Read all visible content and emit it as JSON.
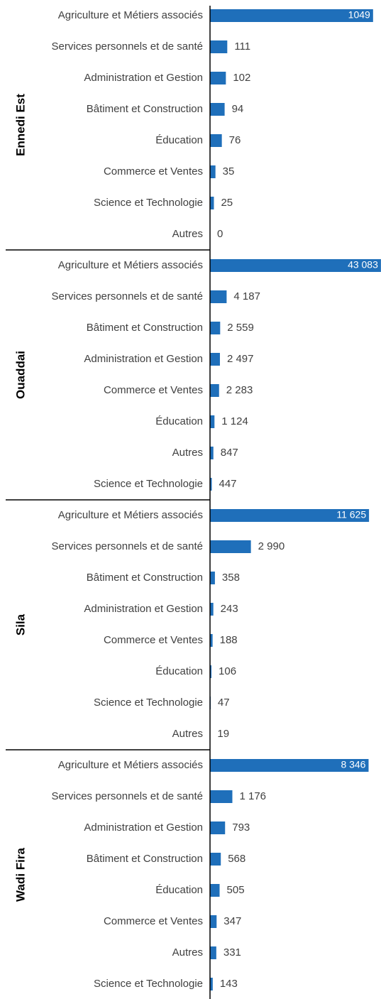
{
  "chart_data": [
    {
      "type": "bar",
      "title": "Ennedi Est",
      "color": "#1f6fba",
      "categories": [
        "Agriculture et Métiers associés",
        "Services personnels et de santé",
        "Administration et Gestion",
        "Bâtiment et Construction",
        "Éducation",
        "Commerce et Ventes",
        "Science et Technologie",
        "Autres"
      ],
      "values": [
        1049,
        111,
        102,
        94,
        76,
        35,
        25,
        0
      ],
      "xlim": [
        0,
        1100
      ]
    },
    {
      "type": "bar",
      "title": "Ouaddai",
      "color": "#1f6fba",
      "categories": [
        "Agriculture et Métiers associés",
        "Services personnels et de santé",
        "Bâtiment et Construction",
        "Administration et Gestion",
        "Commerce et Ventes",
        "Éducation",
        "Autres",
        "Science et Technologie"
      ],
      "values": [
        43083,
        4187,
        2559,
        2497,
        2283,
        1124,
        847,
        447
      ],
      "value_labels": [
        "43 083",
        "4 187",
        "2 559",
        "2 497",
        "2 283",
        "1 124",
        "847",
        "447"
      ],
      "xlim": [
        0,
        43100
      ]
    },
    {
      "type": "bar",
      "title": "Sila",
      "color": "#1f6fba",
      "categories": [
        "Agriculture et Métiers associés",
        "Services personnels et de santé",
        "Bâtiment et Construction",
        "Administration et Gestion",
        "Commerce et Ventes",
        "Éducation",
        "Science et Technologie",
        "Autres"
      ],
      "values": [
        11625,
        2990,
        358,
        243,
        188,
        106,
        47,
        19
      ],
      "value_labels": [
        "11 625",
        "2 990",
        "358",
        "243",
        "188",
        "106",
        "47",
        "19"
      ],
      "xlim": [
        0,
        12500
      ]
    },
    {
      "type": "bar",
      "title": "Wadi Fira",
      "color": "#1f6fba",
      "categories": [
        "Agriculture et Métiers associés",
        "Services personnels et de santé",
        "Administration et Gestion",
        "Bâtiment et Construction",
        "Éducation",
        "Commerce et Ventes",
        "Autres",
        "Science et Technologie"
      ],
      "values": [
        8346,
        1176,
        793,
        568,
        505,
        347,
        331,
        143
      ],
      "value_labels": [
        "8 346",
        "1 176",
        "793",
        "568",
        "505",
        "347",
        "331",
        "143"
      ],
      "xlim": [
        0,
        9000
      ]
    }
  ]
}
